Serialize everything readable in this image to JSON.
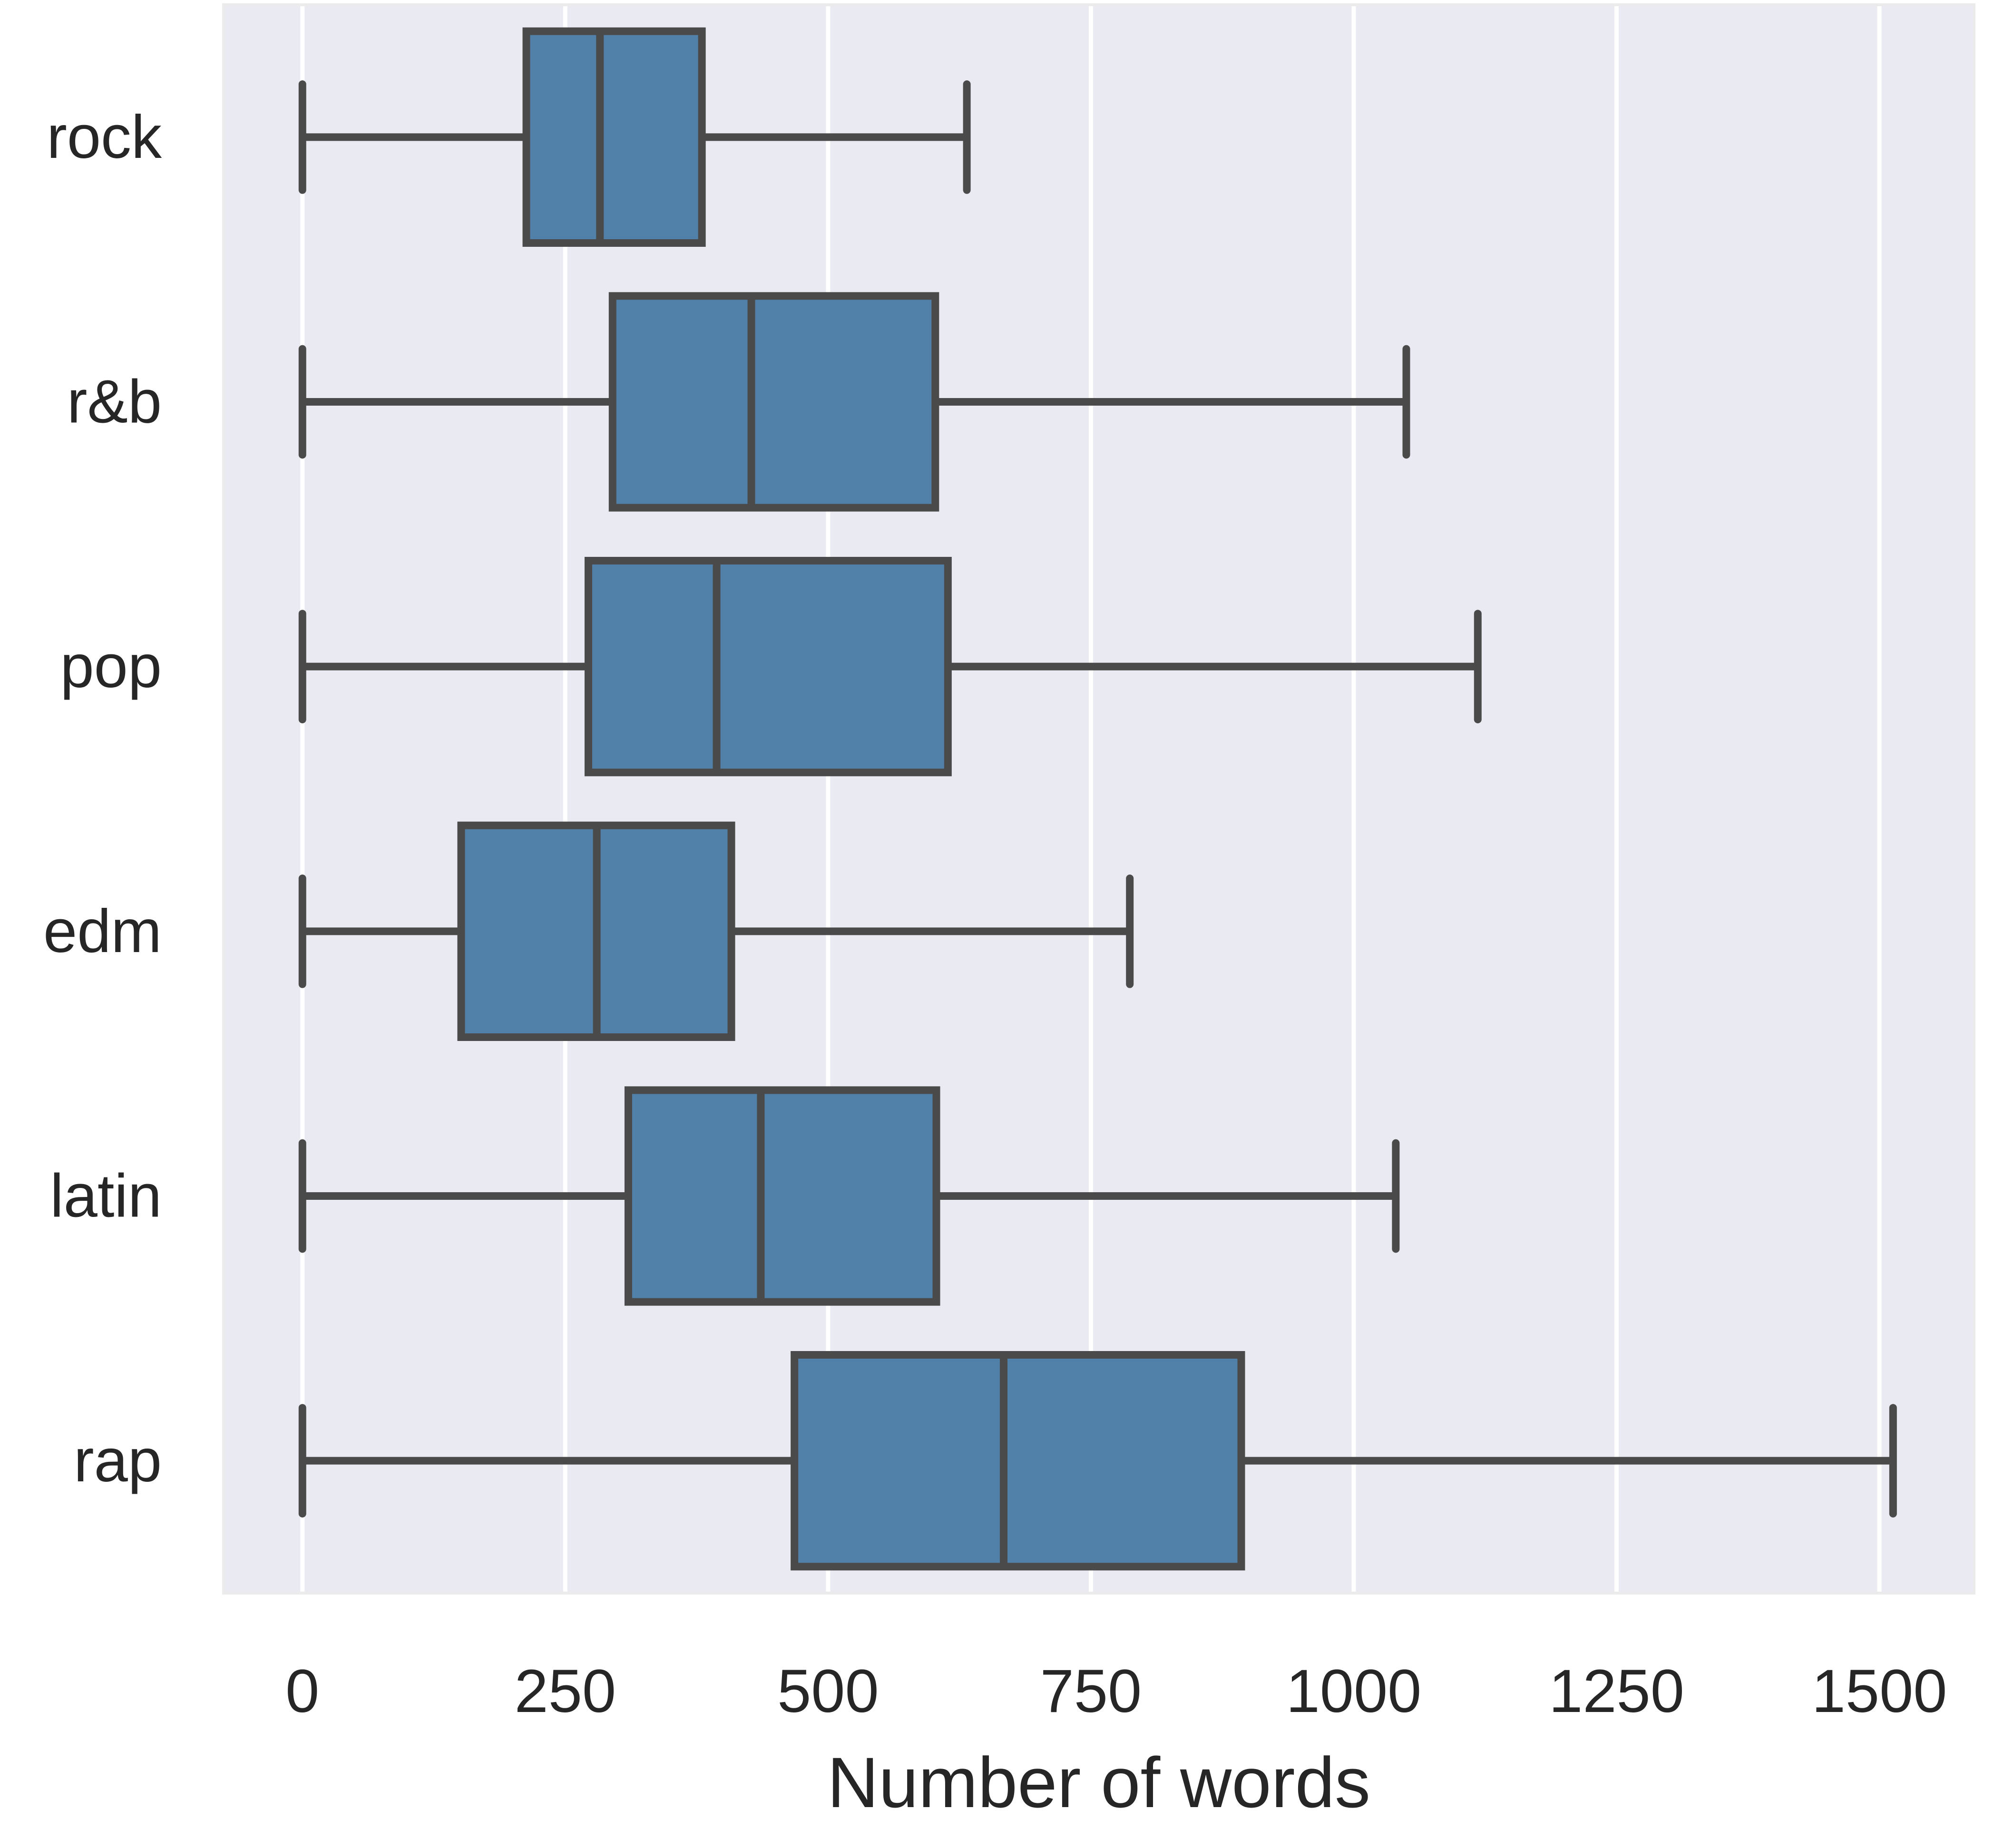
{
  "chart_data": {
    "type": "boxplot",
    "orientation": "horizontal",
    "title": "",
    "xlabel": "Number of words",
    "ylabel": "",
    "xlim": [
      -75,
      1590
    ],
    "x_ticks": [
      0,
      250,
      500,
      750,
      1000,
      1250,
      1500
    ],
    "x_tick_labels": [
      "0",
      "250",
      "500",
      "750",
      "1000",
      "1250",
      "1500"
    ],
    "grid": "vertical",
    "style": "seaborn darkgrid",
    "colors": {
      "plot_background": "#eaeaf2",
      "box_fill": "#5180a8",
      "box_edge": "#4a4a4a",
      "grid": "#ffffff",
      "text": "#262626"
    },
    "categories": [
      "rock",
      "r&b",
      "pop",
      "edm",
      "latin",
      "rap"
    ],
    "boxes": [
      {
        "category": "rock",
        "whisker_low": 0,
        "q1": 213,
        "median": 283,
        "q3": 380,
        "whisker_high": 632
      },
      {
        "category": "r&b",
        "whisker_low": 0,
        "q1": 295,
        "median": 427,
        "q3": 602,
        "whisker_high": 1050
      },
      {
        "category": "pop",
        "whisker_low": 0,
        "q1": 272,
        "median": 394,
        "q3": 614,
        "whisker_high": 1118
      },
      {
        "category": "edm",
        "whisker_low": 0,
        "q1": 151,
        "median": 280,
        "q3": 408,
        "whisker_high": 787
      },
      {
        "category": "latin",
        "whisker_low": 0,
        "q1": 310,
        "median": 436,
        "q3": 603,
        "whisker_high": 1040
      },
      {
        "category": "rap",
        "whisker_low": 0,
        "q1": 468,
        "median": 667,
        "q3": 893,
        "whisker_high": 1513
      }
    ]
  }
}
